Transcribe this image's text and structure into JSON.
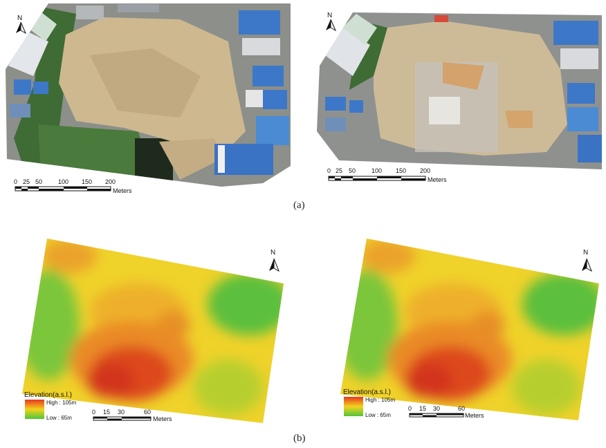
{
  "panels": [
    {
      "label": "(a)",
      "maps": [
        {
          "kind": "orthophoto",
          "north_label": "N",
          "scale_ticks": [
            "0",
            "25",
            "50",
            "100",
            "150",
            "200"
          ],
          "scale_unit": "Meters"
        },
        {
          "kind": "orthophoto",
          "north_label": "N",
          "scale_ticks": [
            "0",
            "25",
            "50",
            "100",
            "150",
            "200"
          ],
          "scale_unit": "Meters"
        }
      ]
    },
    {
      "label": "(b)",
      "maps": [
        {
          "kind": "elevation",
          "north_label": "N",
          "legend_title": "Elevation(a.s.l.)",
          "legend_high": "High : 105",
          "legend_low": "Low : 65",
          "legend_unit": "m",
          "scale_ticks": [
            "0",
            "15",
            "30",
            "60"
          ],
          "scale_unit": "Meters"
        },
        {
          "kind": "elevation",
          "north_label": "N",
          "legend_title": "Elevation(a.s.l.)",
          "legend_high": "High : 105",
          "legend_low": "Low : 65",
          "legend_unit": "m",
          "scale_ticks": [
            "0",
            "15",
            "30",
            "60"
          ],
          "scale_unit": "Meters"
        }
      ]
    }
  ],
  "colors": {
    "soil": "#cdb890",
    "vegetation": "#3f6b34",
    "roof_blue": "#3d78c8",
    "elev_high": "#dd3a1f",
    "elev_mid": "#f2c01b",
    "elev_low": "#4fbf3c"
  }
}
